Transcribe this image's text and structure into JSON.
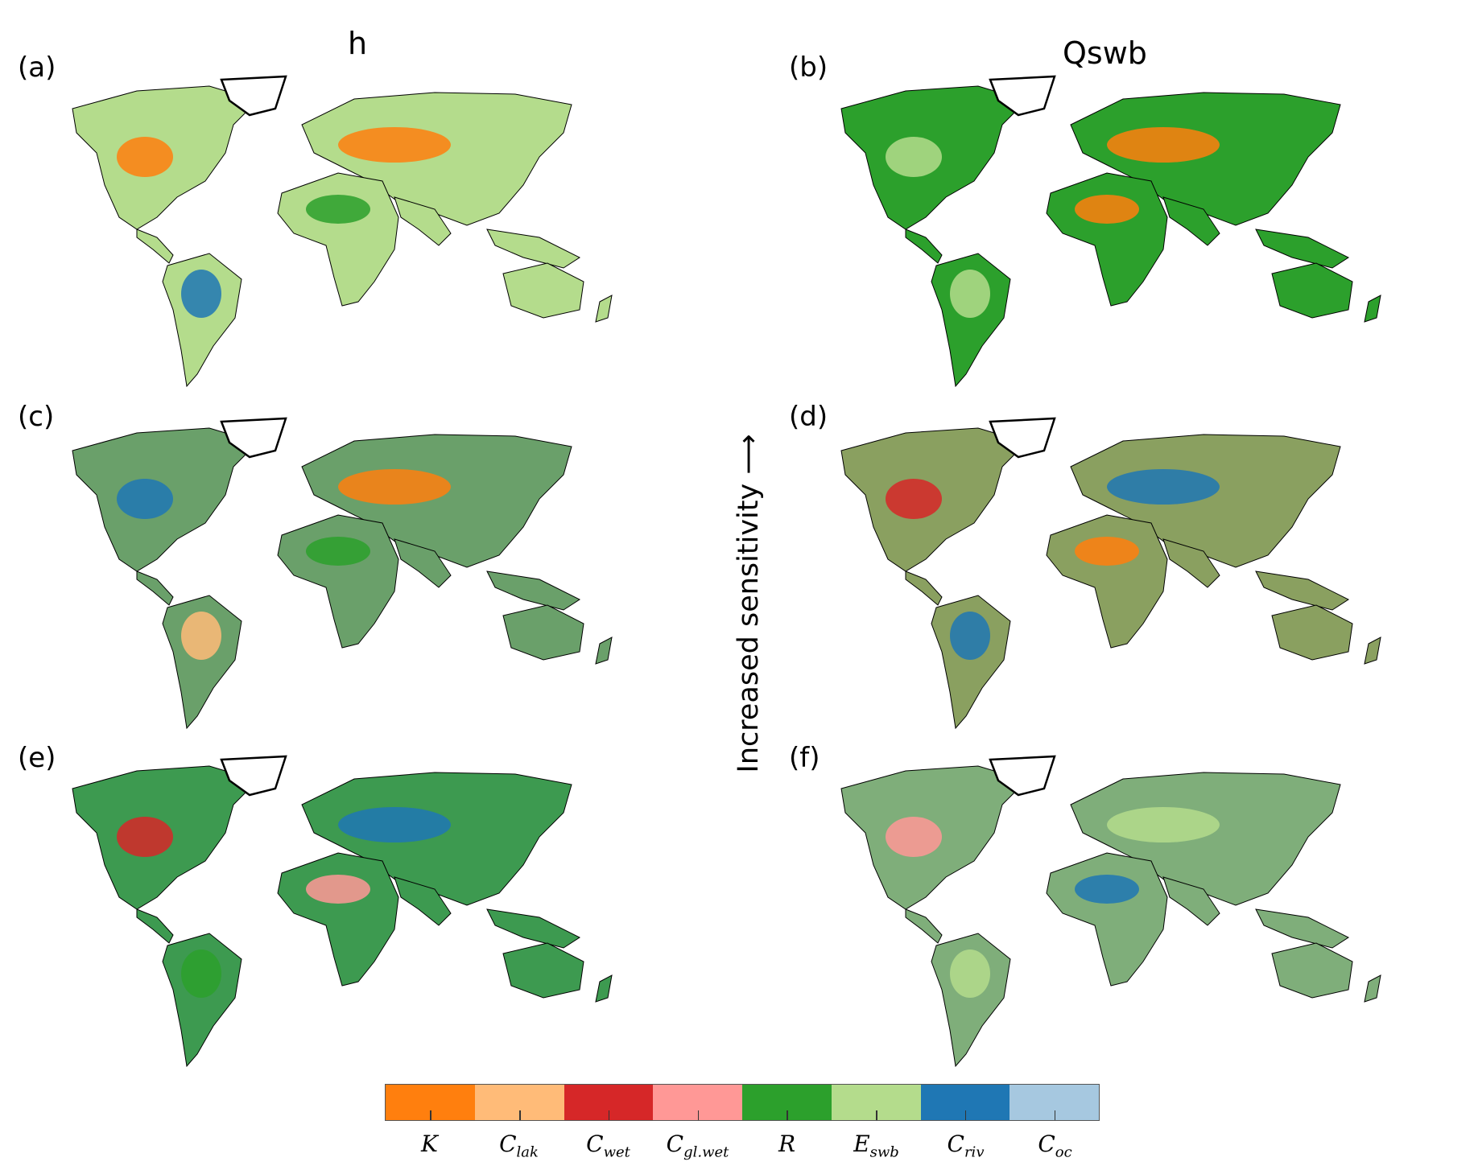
{
  "columns": {
    "left_title": "h",
    "right_title": "Qswb"
  },
  "side_label": "Increased sensitivity ⟶",
  "panels": [
    {
      "label": "(a)",
      "base": "#b4dc8c",
      "patches": [
        "#ff7f0e",
        "#ff7f0e",
        "#2ca02c",
        "#1f77b4"
      ]
    },
    {
      "label": "(b)",
      "base": "#2ca02c",
      "patches": [
        "#ff7f0e",
        "#b4dc8c",
        "#ff7f0e",
        "#b4dc8c"
      ]
    },
    {
      "label": "(c)",
      "base": "#6aa06a",
      "patches": [
        "#ff7f0e",
        "#1f77b4",
        "#2ca02c",
        "#ffbb78"
      ]
    },
    {
      "label": "(d)",
      "base": "#8aa060",
      "patches": [
        "#1f77b4",
        "#d62728",
        "#ff7f0e",
        "#1f77b4"
      ]
    },
    {
      "label": "(e)",
      "base": "#3d9a50",
      "patches": [
        "#1f77b4",
        "#d62728",
        "#ff9896",
        "#2ca02c"
      ]
    },
    {
      "label": "(f)",
      "base": "#7fae7a",
      "patches": [
        "#b4dc8c",
        "#ff9896",
        "#1f77b4",
        "#b4dc8c"
      ]
    }
  ],
  "legend": [
    {
      "main": "K",
      "sub": "",
      "color": "#ff7f0e"
    },
    {
      "main": "C",
      "sub": "lak",
      "color": "#ffbb78"
    },
    {
      "main": "C",
      "sub": "wet",
      "color": "#d62728"
    },
    {
      "main": "C",
      "sub": "gl.wet",
      "color": "#ff9896"
    },
    {
      "main": "R",
      "sub": "",
      "color": "#2ca02c"
    },
    {
      "main": "E",
      "sub": "swb",
      "color": "#b4dc8c"
    },
    {
      "main": "C",
      "sub": "riv",
      "color": "#1f77b4"
    },
    {
      "main": "C",
      "sub": "oc",
      "color": "#a6c8e0"
    }
  ]
}
